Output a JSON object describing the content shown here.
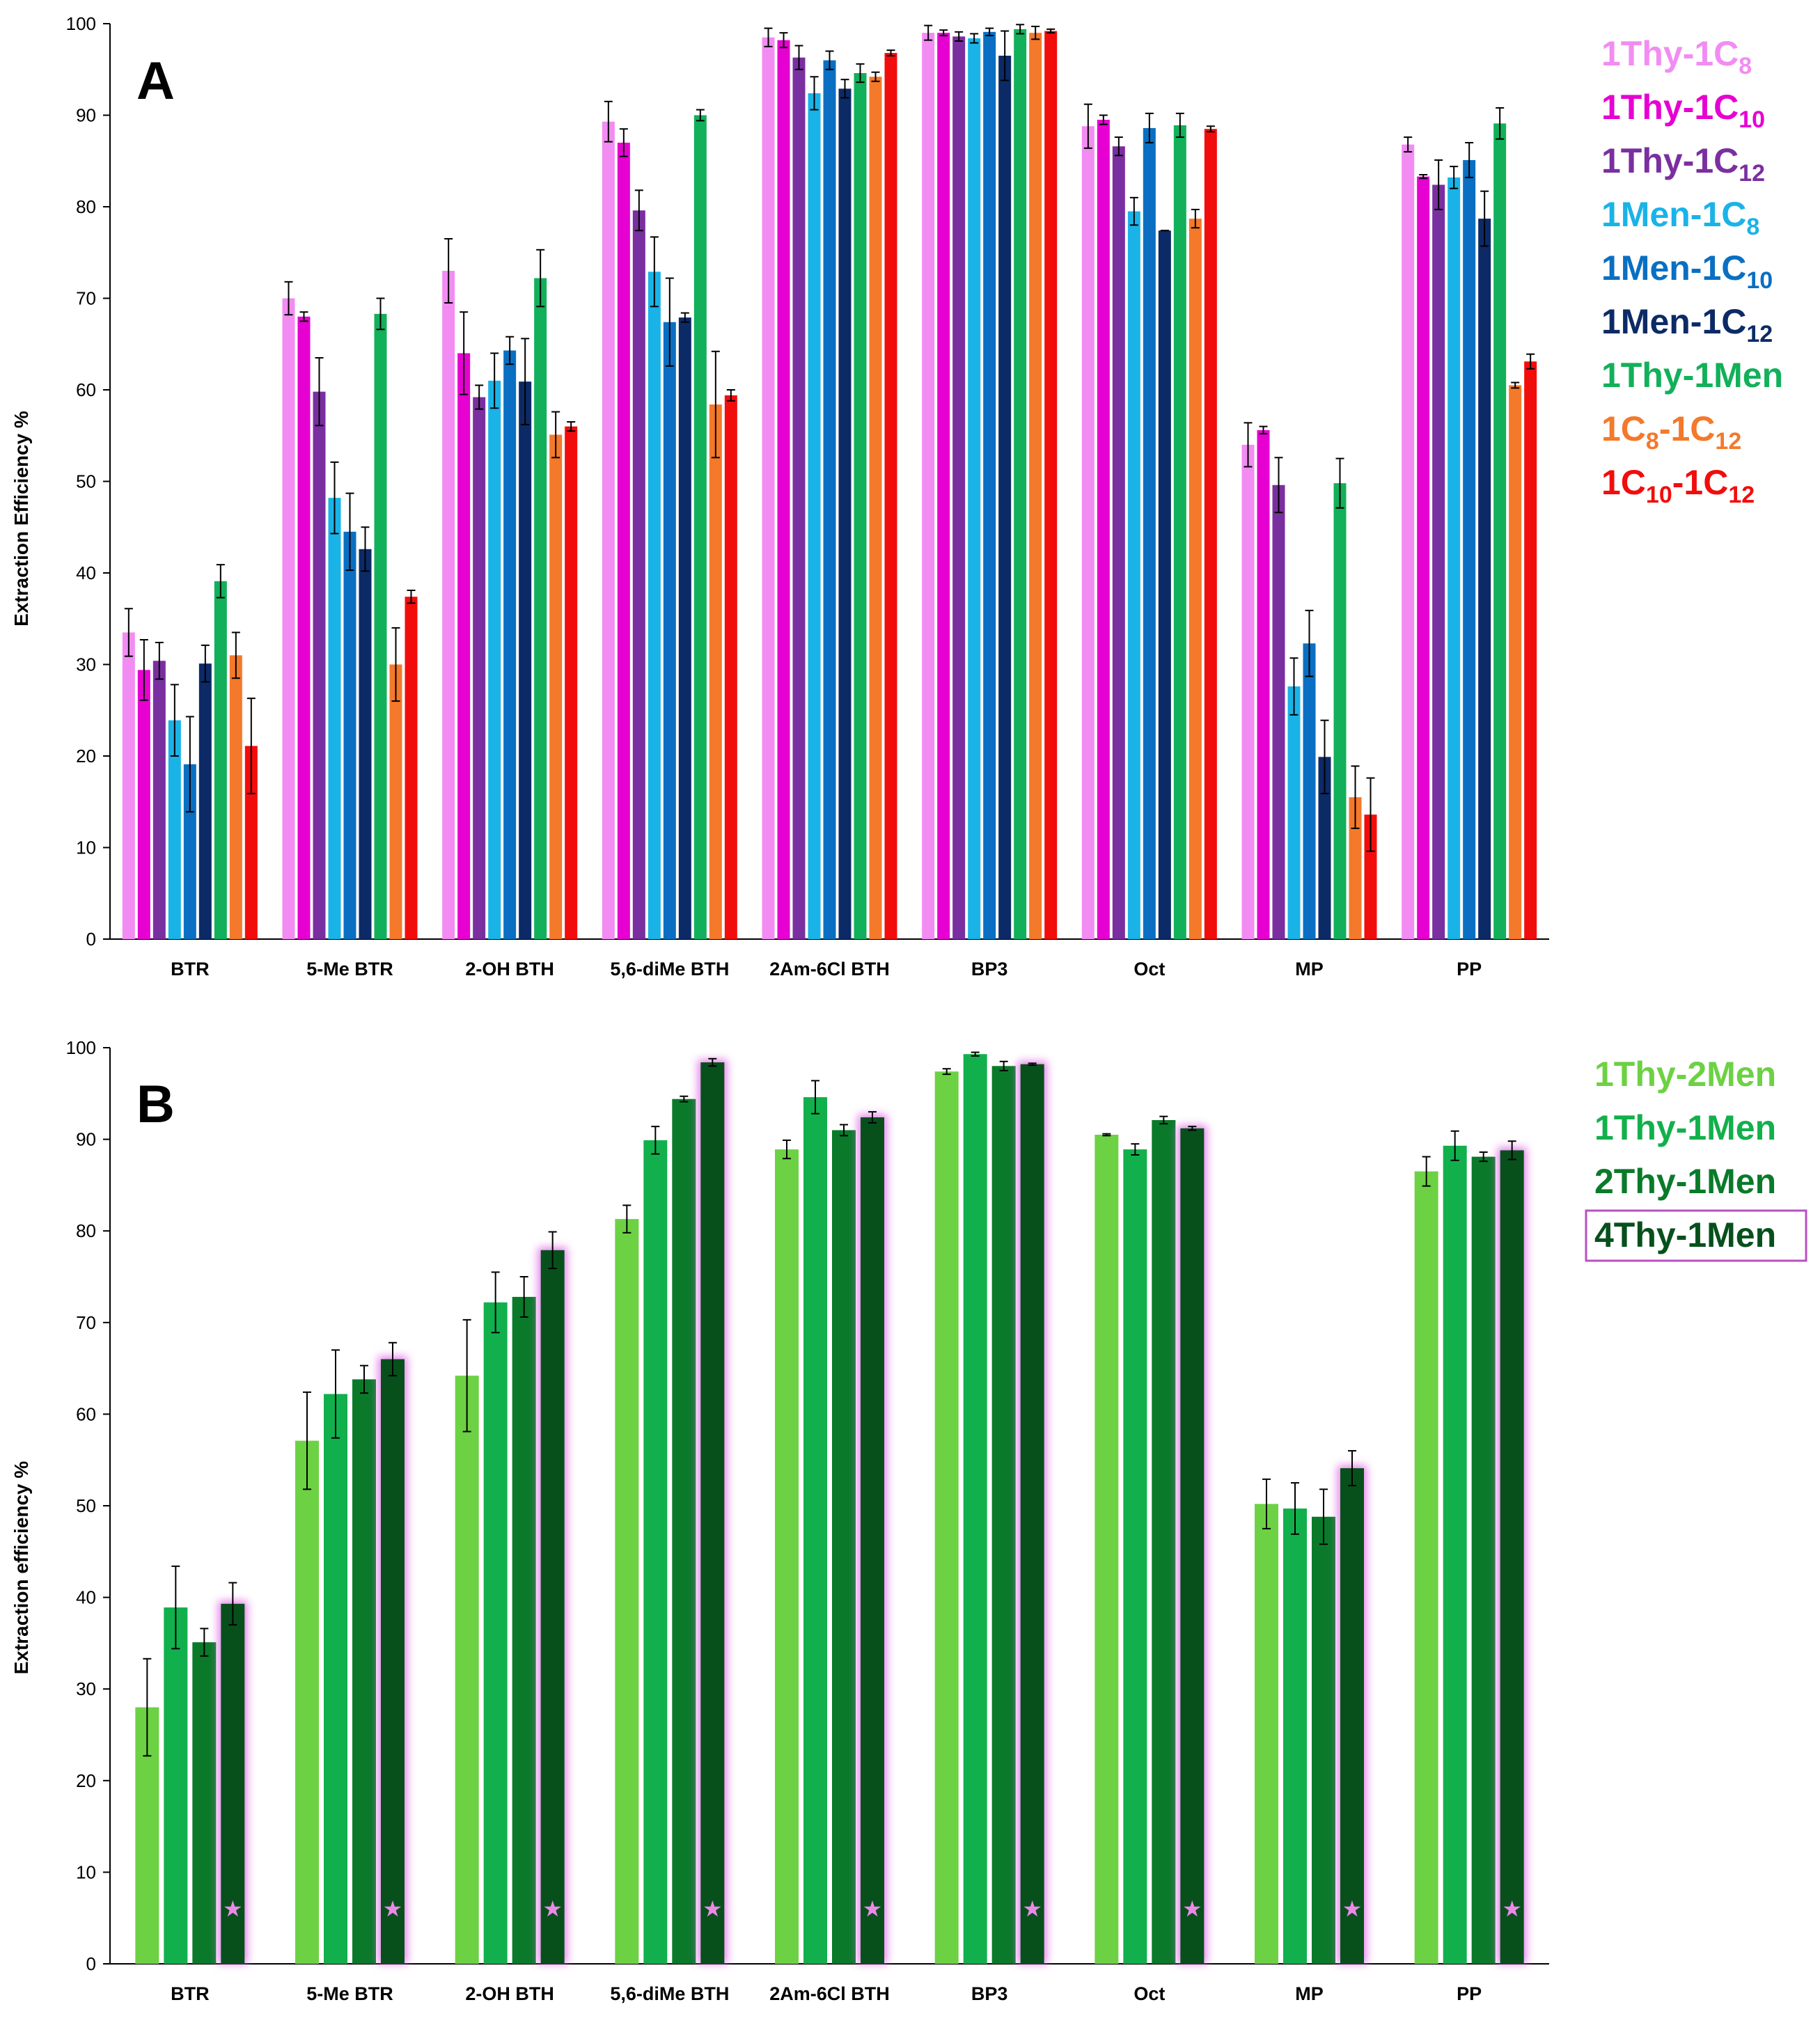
{
  "chart_data": [
    {
      "panel": "A",
      "type": "bar",
      "ylabel": "Extraction Efficiency %",
      "ylim": [
        0,
        100
      ],
      "yticks": [
        0,
        10,
        20,
        30,
        40,
        50,
        60,
        70,
        80,
        90,
        100
      ],
      "categories": [
        "BTR",
        "5-Me BTR",
        "2-OH BTH",
        "5,6-diMe BTH",
        "2Am-6Cl BTH",
        "BP3",
        "Oct",
        "MP",
        "PP"
      ],
      "legend_position": "right",
      "series": [
        {
          "name": "1Thy-1C8",
          "label_main": "1Thy-1C",
          "label_sub": "8",
          "color": "#f28cf2",
          "values": [
            33.5,
            70,
            73,
            89.3,
            98.5,
            99,
            88.8,
            54,
            86.8
          ],
          "errors": [
            2.6,
            1.8,
            3.5,
            2.2,
            1,
            0.8,
            2.4,
            2.4,
            0.8
          ]
        },
        {
          "name": "1Thy-1C10",
          "label_main": "1Thy-1C",
          "label_sub": "10",
          "color": "#e600d2",
          "values": [
            29.4,
            68,
            64,
            87,
            98.2,
            99,
            89.5,
            55.6,
            83.3
          ],
          "errors": [
            3.3,
            0.5,
            4.5,
            1.5,
            0.8,
            0.3,
            0.5,
            0.4,
            0.2
          ]
        },
        {
          "name": "1Thy-1C12",
          "label_main": "1Thy-1C",
          "label_sub": "12",
          "color": "#7a2fa0",
          "values": [
            30.4,
            59.8,
            59.2,
            79.6,
            96.3,
            98.6,
            86.6,
            49.6,
            82.4
          ],
          "errors": [
            2,
            3.7,
            1.3,
            2.2,
            1.3,
            0.5,
            1,
            3,
            2.7
          ]
        },
        {
          "name": "1Men-1C8",
          "label_main": "1Men-1C",
          "label_sub": "8",
          "color": "#1ab3e8",
          "values": [
            23.9,
            48.2,
            61,
            72.9,
            92.4,
            98.4,
            79.5,
            27.6,
            83.2
          ],
          "errors": [
            3.9,
            3.9,
            3,
            3.8,
            1.8,
            0.5,
            1.5,
            3.1,
            1.2
          ]
        },
        {
          "name": "1Men-1C10",
          "label_main": "1Men-1C",
          "label_sub": "10",
          "color": "#0a6fc2",
          "values": [
            19.1,
            44.5,
            64.3,
            67.4,
            96,
            99.1,
            88.6,
            32.3,
            85.1
          ],
          "errors": [
            5.2,
            4.2,
            1.5,
            4.8,
            1,
            0.4,
            1.6,
            3.6,
            1.9
          ]
        },
        {
          "name": "1Men-1C12",
          "label_main": "1Men-1C",
          "label_sub": "12",
          "color": "#0c2a66",
          "values": [
            30.1,
            42.6,
            60.9,
            67.9,
            92.9,
            96.5,
            77.4,
            19.9,
            78.7
          ],
          "errors": [
            2,
            2.4,
            4.7,
            0.5,
            1,
            2.7,
            0,
            4,
            3
          ]
        },
        {
          "name": "1Thy-1Men",
          "label_main": "1Thy-1Men",
          "label_sub": "",
          "color": "#12b05a",
          "values": [
            39.1,
            68.3,
            72.2,
            90,
            94.6,
            99.4,
            88.9,
            49.8,
            89.1
          ],
          "errors": [
            1.8,
            1.7,
            3.1,
            0.6,
            1,
            0.5,
            1.3,
            2.7,
            1.7
          ]
        },
        {
          "name": "1C8-1C12",
          "label_main": "1C",
          "label_sub": "8",
          "label_main2": "-1C",
          "label_sub2": "12",
          "color": "#f4792b",
          "values": [
            31,
            30,
            55.1,
            58.4,
            94.2,
            99,
            78.7,
            15.5,
            60.5
          ],
          "errors": [
            2.5,
            4,
            2.5,
            5.8,
            0.5,
            0.7,
            1,
            3.4,
            0.3
          ]
        },
        {
          "name": "1C10-1C12",
          "label_main": "1C",
          "label_sub": "10",
          "label_main2": "-1C",
          "label_sub2": "12",
          "color": "#f20d0d",
          "values": [
            21.1,
            37.4,
            56,
            59.4,
            96.8,
            99.2,
            88.5,
            13.6,
            63.1
          ],
          "errors": [
            5.2,
            0.7,
            0.5,
            0.6,
            0.3,
            0.2,
            0.3,
            4,
            0.8
          ]
        }
      ]
    },
    {
      "panel": "B",
      "type": "bar",
      "ylabel": "Extraction efficiency %",
      "ylim": [
        0,
        100
      ],
      "yticks": [
        0,
        10,
        20,
        30,
        40,
        50,
        60,
        70,
        80,
        90,
        100
      ],
      "categories": [
        "BTR",
        "5-Me BTR",
        "2-OH BTH",
        "5,6-diMe BTH",
        "2Am-6Cl BTH",
        "BP3",
        "Oct",
        "MP",
        "PP"
      ],
      "legend_position": "right",
      "highlight_series": "4Thy-1Men",
      "highlight_marker": "★",
      "series": [
        {
          "name": "1Thy-2Men",
          "color": "#6dd144",
          "values": [
            28,
            57.1,
            64.2,
            81.3,
            88.9,
            97.4,
            90.5,
            50.2,
            86.5
          ],
          "errors": [
            5.3,
            5.3,
            6.1,
            1.5,
            1,
            0.3,
            0.1,
            2.7,
            1.6
          ]
        },
        {
          "name": "1Thy-1Men",
          "color": "#12b04c",
          "values": [
            38.9,
            62.2,
            72.2,
            89.9,
            94.6,
            99.3,
            88.9,
            49.7,
            89.3
          ],
          "errors": [
            4.5,
            4.8,
            3.3,
            1.5,
            1.8,
            0.2,
            0.6,
            2.8,
            1.6
          ]
        },
        {
          "name": "2Thy-1Men",
          "color": "#0a7a2a",
          "values": [
            35.1,
            63.8,
            72.8,
            94.4,
            91,
            98,
            92.1,
            48.8,
            88.1
          ],
          "errors": [
            1.5,
            1.5,
            2.2,
            0.3,
            0.6,
            0.5,
            0.4,
            3,
            0.5
          ]
        },
        {
          "name": "4Thy-1Men",
          "color": "#07501c",
          "values": [
            39.3,
            66,
            77.9,
            98.4,
            92.4,
            98.2,
            91.2,
            54.1,
            88.8
          ],
          "errors": [
            2.3,
            1.8,
            2,
            0.4,
            0.6,
            0.1,
            0.2,
            1.9,
            1
          ]
        }
      ]
    }
  ]
}
